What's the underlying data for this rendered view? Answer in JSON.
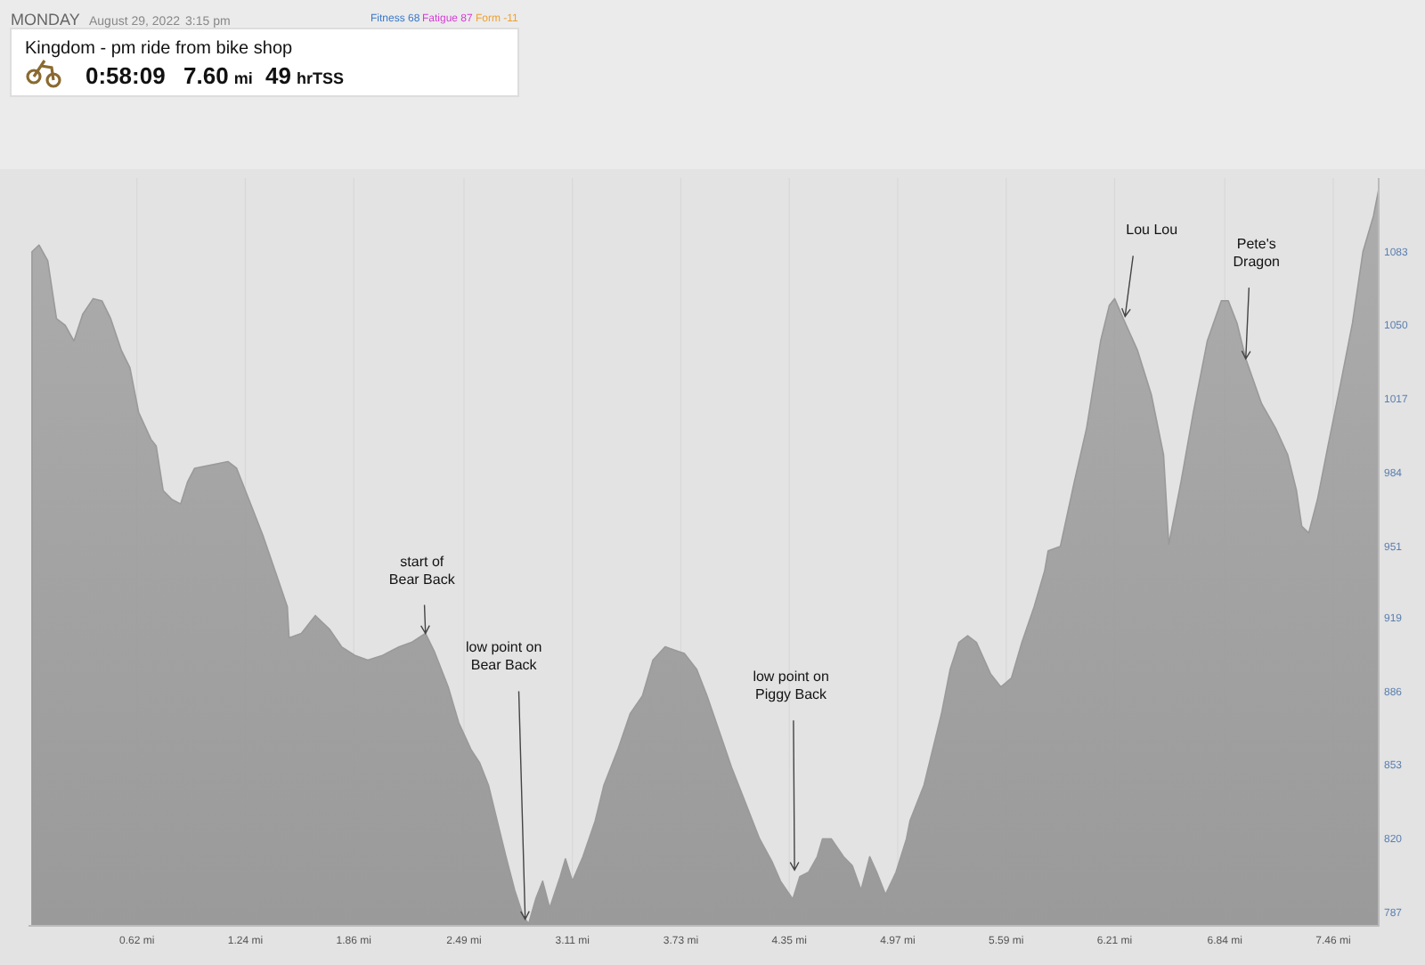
{
  "chart_data": {
    "type": "area",
    "title": "Kingdom - pm ride from bike shop",
    "annotations": [
      "MONDAY",
      "August 29, 2022",
      "3:15 pm",
      "Fitness 68",
      "Fatigue 87",
      "Form -11",
      "0:58:09",
      "7.60 mi",
      "49 hrTSS",
      {
        "text": "start of Bear Back",
        "x": 2.27,
        "y": 912
      },
      {
        "text": "low point on Bear Back",
        "x": 2.84,
        "y": 784
      },
      {
        "text": "low point on Piggy Back",
        "x": 4.38,
        "y": 806
      },
      {
        "text": "Lou Lou",
        "x": 6.27,
        "y": 1054
      },
      {
        "text": "Pete's Dragon",
        "x": 6.96,
        "y": 1035
      }
    ],
    "x": [
      0.02,
      0.06,
      0.11,
      0.16,
      0.21,
      0.26,
      0.31,
      0.37,
      0.42,
      0.47,
      0.53,
      0.58,
      0.63,
      0.7,
      0.73,
      0.77,
      0.82,
      0.87,
      0.91,
      0.95,
      1.14,
      1.19,
      1.26,
      1.34,
      1.41,
      1.48,
      1.49,
      1.56,
      1.64,
      1.72,
      1.79,
      1.87,
      1.94,
      2.02,
      2.07,
      2.12,
      2.19,
      2.27,
      2.32,
      2.4,
      2.46,
      2.53,
      2.58,
      2.63,
      2.68,
      2.73,
      2.78,
      2.83,
      2.86,
      2.9,
      2.94,
      2.98,
      3.04,
      3.07,
      3.11,
      3.17,
      3.24,
      3.29,
      3.37,
      3.44,
      3.51,
      3.57,
      3.64,
      3.75,
      3.82,
      3.88,
      3.95,
      4.02,
      4.1,
      4.18,
      4.25,
      4.3,
      4.37,
      4.41,
      4.46,
      4.51,
      4.54,
      4.59,
      4.66,
      4.71,
      4.76,
      4.81,
      4.85,
      4.9,
      4.96,
      5.02,
      5.04,
      5.12,
      5.22,
      5.27,
      5.32,
      5.37,
      5.42,
      5.5,
      5.56,
      5.62,
      5.68,
      5.75,
      5.81,
      5.83,
      5.9,
      5.98,
      6.05,
      6.13,
      6.18,
      6.21,
      6.26,
      6.34,
      6.42,
      6.49,
      6.52,
      6.59,
      6.66,
      6.74,
      6.82,
      6.86,
      6.91,
      6.96,
      7.05,
      7.13,
      7.2,
      7.25,
      7.28,
      7.32,
      7.37,
      7.43,
      7.5,
      7.57,
      7.63,
      7.69,
      7.72
    ],
    "series": [
      {
        "color": "#9a9a9a",
        "values": [
          1083,
          1086,
          1079,
          1053,
          1050,
          1043,
          1055,
          1062,
          1061,
          1053,
          1039,
          1031,
          1011,
          999,
          996,
          976,
          972,
          970,
          980,
          986,
          989,
          986,
          972,
          956,
          940,
          924,
          910,
          912,
          920,
          914,
          906,
          902,
          900,
          902,
          904,
          906,
          908,
          912,
          904,
          888,
          872,
          860,
          854,
          844,
          828,
          812,
          797,
          785,
          782,
          793,
          801,
          789,
          803,
          811,
          801,
          812,
          828,
          844,
          860,
          876,
          884,
          900,
          906,
          903,
          896,
          884,
          868,
          852,
          836,
          820,
          810,
          801,
          793,
          803,
          805,
          812,
          820,
          820,
          812,
          808,
          797,
          812,
          805,
          795,
          805,
          820,
          828,
          844,
          876,
          896,
          908,
          911,
          908,
          894,
          888,
          892,
          908,
          924,
          940,
          949,
          951,
          980,
          1004,
          1043,
          1059,
          1062,
          1053,
          1039,
          1019,
          992,
          952,
          980,
          1011,
          1043,
          1061,
          1061,
          1051,
          1035,
          1015,
          1004,
          992,
          976,
          960,
          957,
          972,
          996,
          1023,
          1051,
          1083,
          1099,
          1111
        ]
      }
    ],
    "xlim": [
      0,
      7.72
    ],
    "ylim": [
      781,
      1116
    ],
    "xticks": [
      {
        "value": 0.62,
        "label": "0.62 mi"
      },
      {
        "value": 1.24,
        "label": "1.24 mi"
      },
      {
        "value": 1.86,
        "label": "1.86 mi"
      },
      {
        "value": 2.49,
        "label": "2.49 mi"
      },
      {
        "value": 3.11,
        "label": "3.11 mi"
      },
      {
        "value": 3.73,
        "label": "3.73 mi"
      },
      {
        "value": 4.35,
        "label": "4.35 mi"
      },
      {
        "value": 4.97,
        "label": "4.97 mi"
      },
      {
        "value": 5.59,
        "label": "5.59 mi"
      },
      {
        "value": 6.21,
        "label": "6.21 mi"
      },
      {
        "value": 6.84,
        "label": "6.84 mi"
      },
      {
        "value": 7.46,
        "label": "7.46 mi"
      }
    ],
    "yticks": [
      787,
      820,
      853,
      886,
      919,
      951,
      984,
      1017,
      1050,
      1083
    ],
    "grid": "x"
  }
}
